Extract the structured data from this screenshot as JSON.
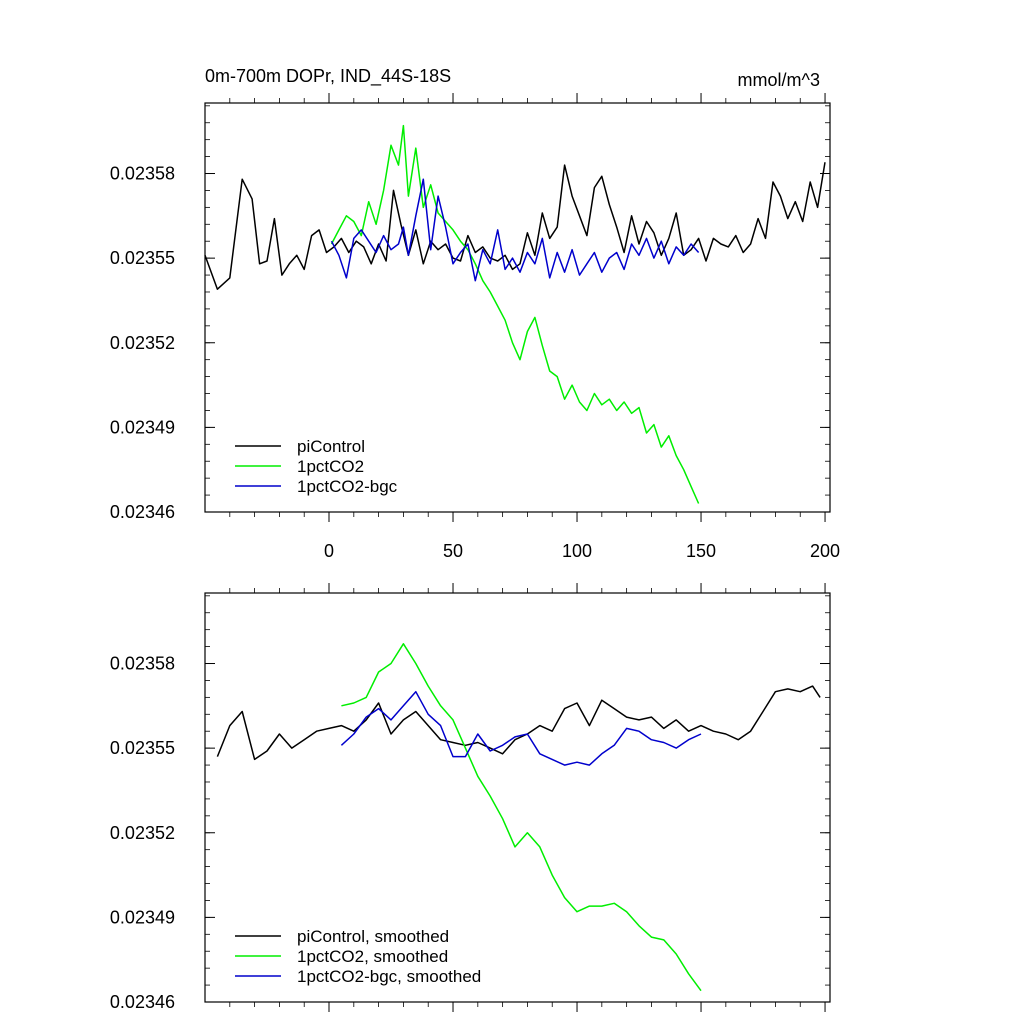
{
  "chart_data": [
    {
      "type": "line",
      "title": "0m-700m DOPr, IND_44S-18S",
      "units": "mmol/m^3",
      "xlim": [
        -50,
        202
      ],
      "ylim": [
        0.02346,
        0.023605
      ],
      "x_ticks": [
        0,
        50,
        100,
        150,
        200
      ],
      "x_tick_labels": [
        "0",
        "50",
        "100",
        "150",
        "200"
      ],
      "y_ticks": [
        0.02346,
        0.02349,
        0.02352,
        0.02355,
        0.02358
      ],
      "y_tick_labels": [
        "0.02346",
        "0.02349",
        "0.02352",
        "0.02355",
        "0.02358"
      ],
      "legend": "bottom-left",
      "series": [
        {
          "name": "piControl",
          "color": "#000000",
          "x": [
            -50,
            -45,
            -40,
            -35,
            -31,
            -28,
            -25,
            -22,
            -19,
            -16,
            -13,
            -10,
            -7,
            -4,
            -1,
            2,
            5,
            8,
            11,
            14,
            17,
            20,
            23,
            26,
            29,
            32,
            35,
            38,
            41,
            44,
            47,
            50,
            53,
            56,
            59,
            62,
            65,
            68,
            71,
            74,
            77,
            80,
            83,
            86,
            89,
            92,
            95,
            98,
            101,
            104,
            107,
            110,
            113,
            116,
            119,
            122,
            125,
            128,
            131,
            134,
            137,
            140,
            143,
            146,
            149,
            152,
            155,
            158,
            161,
            164,
            167,
            170,
            173,
            176,
            179,
            182,
            185,
            188,
            191,
            194,
            197,
            200
          ],
          "y": [
            0.023551,
            0.023539,
            0.023543,
            0.023578,
            0.023571,
            0.023548,
            0.023549,
            0.023564,
            0.023544,
            0.023548,
            0.023551,
            0.023546,
            0.023558,
            0.02356,
            0.023552,
            0.023554,
            0.023557,
            0.023552,
            0.023556,
            0.023554,
            0.023548,
            0.023555,
            0.023549,
            0.023574,
            0.023562,
            0.023551,
            0.02356,
            0.023548,
            0.023556,
            0.023553,
            0.023555,
            0.02355,
            0.023549,
            0.023558,
            0.023552,
            0.023554,
            0.02355,
            0.023549,
            0.023551,
            0.023546,
            0.023548,
            0.023559,
            0.023551,
            0.023566,
            0.023557,
            0.023561,
            0.023583,
            0.023572,
            0.023565,
            0.023558,
            0.023575,
            0.023579,
            0.023569,
            0.023561,
            0.023552,
            0.023565,
            0.023555,
            0.023563,
            0.023559,
            0.023551,
            0.023557,
            0.023566,
            0.023551,
            0.023553,
            0.023557,
            0.023549,
            0.023557,
            0.023555,
            0.023554,
            0.023558,
            0.023552,
            0.023555,
            0.023564,
            0.023557,
            0.023577,
            0.023572,
            0.023564,
            0.02357,
            0.023563,
            0.023577,
            0.023568,
            0.023584
          ]
        },
        {
          "name": "1pctCO2",
          "color": "#00ee00",
          "x": [
            1,
            4,
            7,
            10,
            13,
            16,
            19,
            22,
            25,
            28,
            30,
            32,
            35,
            38,
            41,
            44,
            47,
            50,
            53,
            56,
            59,
            62,
            65,
            68,
            71,
            74,
            77,
            80,
            83,
            86,
            89,
            92,
            95,
            98,
            101,
            104,
            107,
            110,
            113,
            116,
            119,
            122,
            125,
            128,
            131,
            134,
            137,
            140,
            143,
            146,
            149
          ],
          "y": [
            0.023555,
            0.02356,
            0.023565,
            0.023563,
            0.023558,
            0.02357,
            0.023562,
            0.023574,
            0.02359,
            0.023583,
            0.023597,
            0.023572,
            0.023589,
            0.023568,
            0.023576,
            0.023566,
            0.023563,
            0.02356,
            0.023556,
            0.023553,
            0.023548,
            0.023542,
            0.023538,
            0.023533,
            0.023528,
            0.02352,
            0.023514,
            0.023524,
            0.023529,
            0.023519,
            0.02351,
            0.023508,
            0.0235,
            0.023505,
            0.023499,
            0.023496,
            0.023502,
            0.023498,
            0.0235,
            0.023496,
            0.023499,
            0.023495,
            0.023497,
            0.023488,
            0.023491,
            0.023483,
            0.023487,
            0.02348,
            0.023475,
            0.023469,
            0.023463
          ]
        },
        {
          "name": "1pctCO2-bgc",
          "color": "#0000cc",
          "x": [
            1,
            4,
            7,
            10,
            13,
            16,
            19,
            22,
            25,
            28,
            30,
            32,
            35,
            38,
            41,
            44,
            47,
            50,
            53,
            56,
            59,
            62,
            65,
            68,
            71,
            74,
            77,
            80,
            83,
            86,
            89,
            92,
            95,
            98,
            101,
            104,
            107,
            110,
            113,
            116,
            119,
            122,
            125,
            128,
            131,
            134,
            137,
            140,
            143,
            146,
            149
          ],
          "y": [
            0.023556,
            0.023551,
            0.023543,
            0.023557,
            0.02356,
            0.023556,
            0.023552,
            0.023558,
            0.023553,
            0.023555,
            0.023561,
            0.023551,
            0.023565,
            0.023578,
            0.023553,
            0.023572,
            0.023561,
            0.023548,
            0.023552,
            0.023555,
            0.023542,
            0.023553,
            0.023548,
            0.02356,
            0.023546,
            0.02355,
            0.023545,
            0.023552,
            0.023548,
            0.023557,
            0.023543,
            0.023552,
            0.023545,
            0.023553,
            0.023544,
            0.023548,
            0.023552,
            0.023545,
            0.02355,
            0.023552,
            0.023546,
            0.023555,
            0.023551,
            0.023557,
            0.02355,
            0.023556,
            0.023548,
            0.023554,
            0.023551,
            0.023555,
            0.023552
          ]
        }
      ]
    },
    {
      "type": "line",
      "title": "",
      "units": "",
      "xlim": [
        -50,
        202
      ],
      "ylim": [
        0.02346,
        0.023605
      ],
      "x_ticks": [
        0,
        50,
        100,
        150,
        200
      ],
      "y_ticks": [
        0.02346,
        0.02349,
        0.02352,
        0.02355,
        0.02358
      ],
      "y_tick_labels": [
        "0.02346",
        "0.02349",
        "0.02352",
        "0.02355",
        "0.02358"
      ],
      "legend": "bottom-left",
      "series": [
        {
          "name": "piControl, smoothed",
          "color": "#000000",
          "x": [
            -45,
            -40,
            -35,
            -30,
            -25,
            -20,
            -15,
            -10,
            -5,
            0,
            5,
            10,
            15,
            20,
            25,
            30,
            35,
            40,
            45,
            50,
            55,
            60,
            65,
            70,
            75,
            80,
            85,
            90,
            95,
            100,
            105,
            110,
            115,
            120,
            125,
            130,
            135,
            140,
            145,
            150,
            155,
            160,
            165,
            170,
            175,
            180,
            185,
            190,
            195,
            198
          ],
          "y": [
            0.023547,
            0.023558,
            0.023563,
            0.023546,
            0.023549,
            0.023555,
            0.02355,
            0.023553,
            0.023556,
            0.023557,
            0.023558,
            0.023556,
            0.02356,
            0.023566,
            0.023555,
            0.02356,
            0.023563,
            0.023558,
            0.023553,
            0.023552,
            0.023551,
            0.023552,
            0.02355,
            0.023548,
            0.023553,
            0.023555,
            0.023558,
            0.023556,
            0.023564,
            0.023566,
            0.023558,
            0.023567,
            0.023564,
            0.023561,
            0.02356,
            0.023561,
            0.023557,
            0.02356,
            0.023556,
            0.023558,
            0.023556,
            0.023555,
            0.023553,
            0.023556,
            0.023563,
            0.02357,
            0.023571,
            0.02357,
            0.023572,
            0.023568
          ]
        },
        {
          "name": "1pctCO2, smoothed",
          "color": "#00ee00",
          "x": [
            5,
            10,
            15,
            20,
            25,
            30,
            35,
            40,
            45,
            50,
            55,
            60,
            65,
            70,
            75,
            80,
            85,
            90,
            95,
            100,
            105,
            110,
            115,
            120,
            125,
            130,
            135,
            140,
            145,
            150
          ],
          "y": [
            0.023565,
            0.023566,
            0.023568,
            0.023577,
            0.02358,
            0.023587,
            0.02358,
            0.023572,
            0.023565,
            0.02356,
            0.02355,
            0.02354,
            0.023533,
            0.023525,
            0.023515,
            0.02352,
            0.023515,
            0.023505,
            0.023497,
            0.023492,
            0.023494,
            0.023494,
            0.023495,
            0.023492,
            0.023487,
            0.023483,
            0.023482,
            0.023477,
            0.02347,
            0.023464
          ]
        },
        {
          "name": "1pctCO2-bgc, smoothed",
          "color": "#0000cc",
          "x": [
            5,
            10,
            15,
            20,
            25,
            30,
            35,
            40,
            45,
            50,
            55,
            60,
            65,
            70,
            75,
            80,
            85,
            90,
            95,
            100,
            105,
            110,
            115,
            120,
            125,
            130,
            135,
            140,
            145,
            150
          ],
          "y": [
            0.023551,
            0.023555,
            0.023561,
            0.023564,
            0.02356,
            0.023565,
            0.02357,
            0.023562,
            0.023558,
            0.023547,
            0.023547,
            0.023555,
            0.023549,
            0.023551,
            0.023554,
            0.023555,
            0.023548,
            0.023546,
            0.023544,
            0.023545,
            0.023544,
            0.023548,
            0.023551,
            0.023557,
            0.023556,
            0.023553,
            0.023552,
            0.02355,
            0.023553,
            0.023555
          ]
        }
      ]
    }
  ]
}
